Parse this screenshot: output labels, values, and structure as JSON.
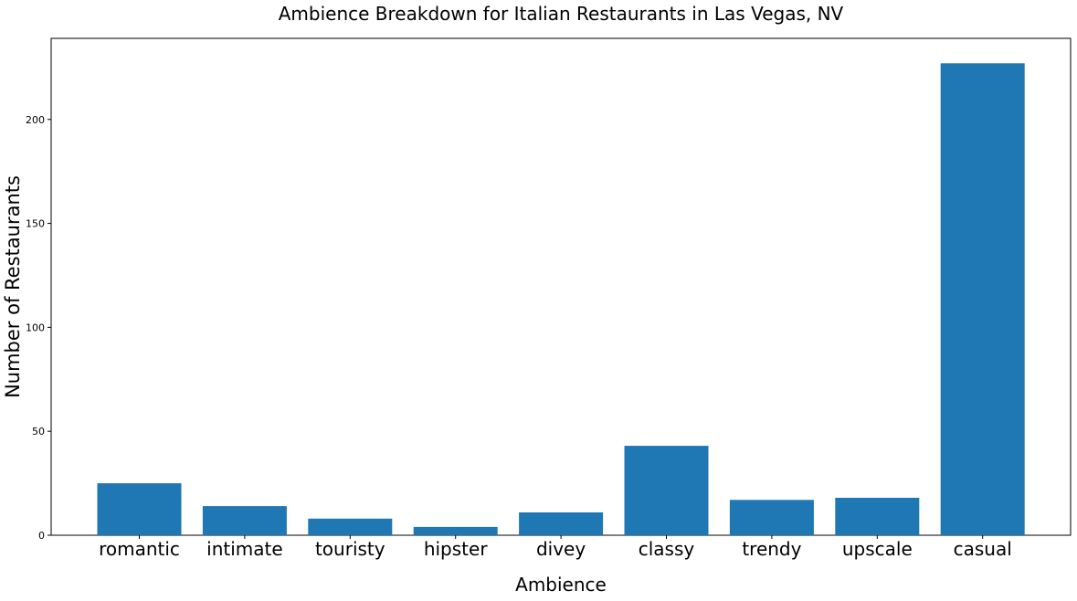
{
  "chart_data": {
    "type": "bar",
    "title": "Ambience Breakdown for Italian Restaurants in Las Vegas, NV",
    "xlabel": "Ambience",
    "ylabel": "Number of Restaurants",
    "categories": [
      "romantic",
      "intimate",
      "touristy",
      "hipster",
      "divey",
      "classy",
      "trendy",
      "upscale",
      "casual"
    ],
    "values": [
      25,
      14,
      8,
      4,
      11,
      43,
      17,
      18,
      227
    ],
    "ylim": [
      0,
      239
    ],
    "yticks": [
      0,
      50,
      100,
      150,
      200
    ],
    "grid": false,
    "bar_color": "#1f77b4"
  }
}
